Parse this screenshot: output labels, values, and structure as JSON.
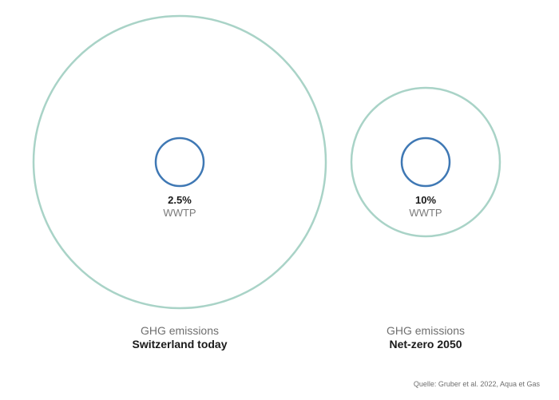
{
  "chart_data": {
    "type": "bubble",
    "items": [
      {
        "share_label": "2.5%",
        "share_value": 2.5,
        "inner_label": "WWTP",
        "caption_line1": "GHG emissions",
        "caption_line2": "Switzerland today"
      },
      {
        "share_label": "10%",
        "share_value": 10,
        "inner_label": "WWTP",
        "caption_line1": "GHG emissions",
        "caption_line2": "Net-zero 2050"
      }
    ],
    "colors": {
      "outer_circle": "#a9d3c7",
      "inner_circle": "#3f78b4"
    }
  },
  "source": "Quelle: Gruber et al. 2022, Aqua et Gas"
}
